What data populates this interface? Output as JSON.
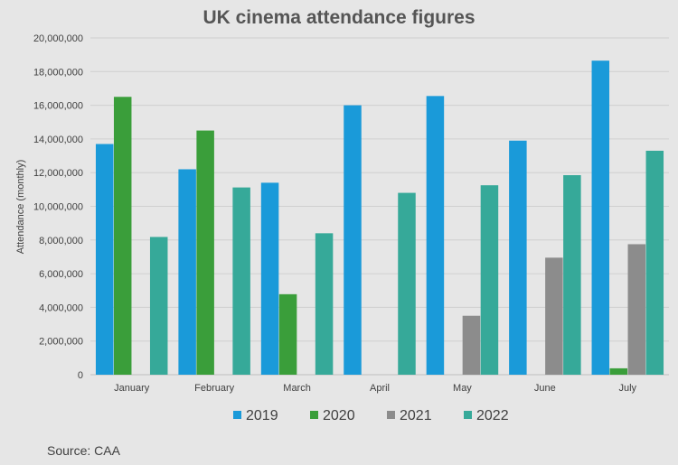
{
  "chart_data": {
    "type": "bar",
    "title": "UK cinema attendance figures",
    "xlabel": "",
    "ylabel": "Attendance (monthly)",
    "ylim": [
      0,
      20000000
    ],
    "ytick_step": 2000000,
    "grid": true,
    "legend_position": "bottom",
    "categories": [
      "January",
      "February",
      "March",
      "April",
      "May",
      "June",
      "July"
    ],
    "series": [
      {
        "name": "2019",
        "color": "#1a9ad9",
        "values": [
          13700000,
          12200000,
          11400000,
          16000000,
          16550000,
          13900000,
          18650000
        ]
      },
      {
        "name": "2020",
        "color": "#3a9e3a",
        "values": [
          16500000,
          14500000,
          4780000,
          0,
          0,
          0,
          380000
        ]
      },
      {
        "name": "2021",
        "color": "#8c8c8c",
        "values": [
          0,
          0,
          0,
          0,
          3500000,
          6950000,
          7750000
        ]
      },
      {
        "name": "2022",
        "color": "#36a999",
        "values": [
          8180000,
          11120000,
          8400000,
          10800000,
          11250000,
          11850000,
          13300000
        ]
      }
    ]
  },
  "source": "Source: CAA"
}
